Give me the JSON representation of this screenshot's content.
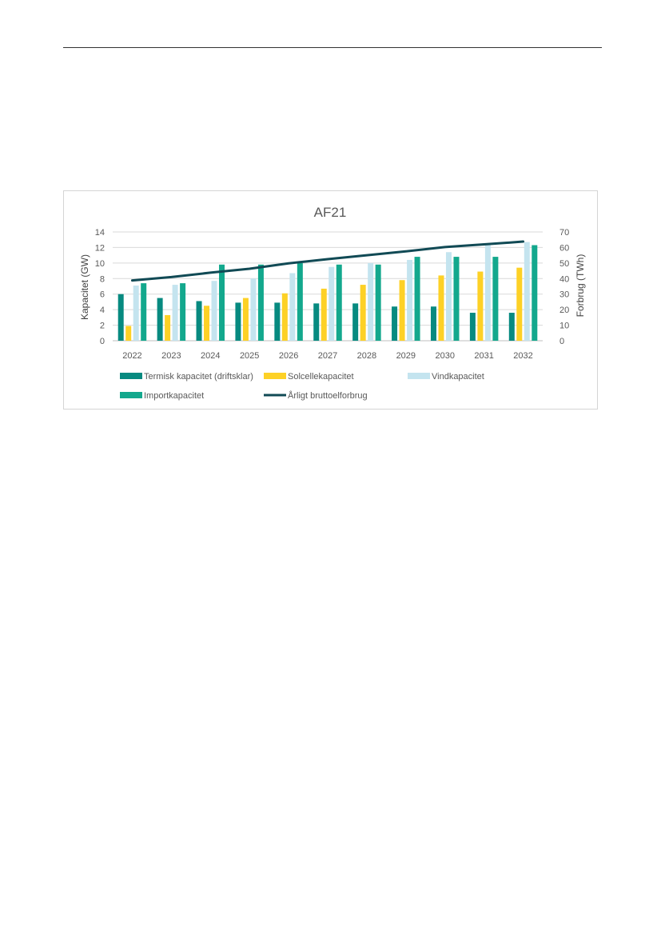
{
  "chart_data": {
    "type": "bar",
    "title": "AF21",
    "categories": [
      "2022",
      "2023",
      "2024",
      "2025",
      "2026",
      "2027",
      "2028",
      "2029",
      "2030",
      "2031",
      "2032"
    ],
    "ylabel": "Kapacitet (GW)",
    "ylabel_right": "Forbrug (TWh)",
    "ylim": [
      0,
      14
    ],
    "ylim_right": [
      0,
      70
    ],
    "yticks": [
      "0",
      "2",
      "4",
      "6",
      "8",
      "10",
      "12",
      "14"
    ],
    "yticks_right": [
      "0",
      "10",
      "20",
      "30",
      "40",
      "50",
      "60",
      "70"
    ],
    "grid": true,
    "legend_position": "bottom",
    "series": [
      {
        "name": "Termisk kapacitet (driftsklar)",
        "kind": "bar",
        "axis": "left",
        "color": "#078a80",
        "values": [
          6.0,
          5.5,
          5.1,
          4.9,
          4.9,
          4.8,
          4.8,
          4.4,
          4.4,
          3.6,
          3.6
        ]
      },
      {
        "name": "Solcellekapacitet",
        "kind": "bar",
        "axis": "left",
        "color": "#fdd126",
        "values": [
          1.9,
          3.3,
          4.5,
          5.5,
          6.1,
          6.7,
          7.2,
          7.8,
          8.4,
          8.9,
          9.4
        ]
      },
      {
        "name": "Vindkapacitet",
        "kind": "bar",
        "axis": "left",
        "color": "#c4e4ef",
        "values": [
          7.1,
          7.2,
          7.7,
          8.0,
          8.7,
          9.5,
          10.0,
          10.4,
          11.4,
          12.3,
          12.7
        ]
      },
      {
        "name": "Importkapacitet",
        "kind": "bar",
        "axis": "left",
        "color": "#13a88d",
        "values": [
          7.4,
          7.4,
          9.8,
          9.8,
          10.0,
          9.8,
          9.8,
          10.8,
          10.8,
          10.8,
          12.3
        ]
      },
      {
        "name": "Årligt bruttoelforbrug",
        "kind": "line",
        "axis": "right",
        "color": "#114a55",
        "values": [
          38.8,
          41.0,
          43.8,
          46.3,
          49.8,
          52.5,
          55.0,
          57.5,
          60.3,
          62.0,
          63.8
        ]
      }
    ]
  }
}
